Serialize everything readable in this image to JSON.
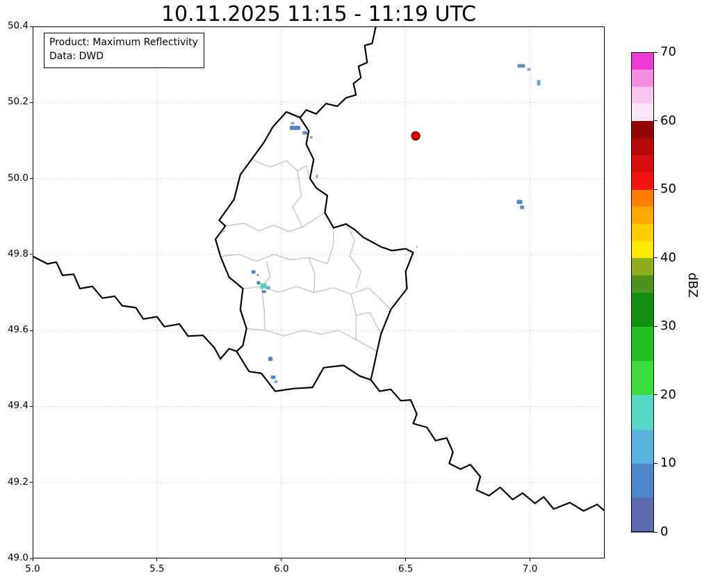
{
  "title": "10.11.2025 11:15 - 11:19 UTC",
  "info_box": {
    "product": "Product: Maximum Reflectivity",
    "source": "Data: DWD"
  },
  "axes": {
    "lon_range": [
      5.0,
      7.3
    ],
    "lat_range": [
      49.0,
      50.4
    ],
    "x_ticks": [
      5.0,
      5.5,
      6.0,
      6.5,
      7.0
    ],
    "x_tick_labels": [
      "5.0",
      "5.5",
      "6.0",
      "6.5",
      "7.0"
    ],
    "y_ticks": [
      49.0,
      49.2,
      49.4,
      49.6,
      49.8,
      50.0,
      50.2,
      50.4
    ],
    "y_tick_labels": [
      "49.0",
      "49.2",
      "49.4",
      "49.6",
      "49.8",
      "50.0",
      "50.2",
      "50.4"
    ],
    "grid": true
  },
  "style": {
    "background": "#ffffff",
    "grid_color": "#b3b3b3",
    "country_border_color": "#000000",
    "canton_border_color": "#bdbdbd"
  },
  "colorbar": {
    "label": "dBZ",
    "range": [
      0,
      70
    ],
    "ticks": [
      0,
      10,
      20,
      30,
      40,
      50,
      60,
      70
    ],
    "tick_labels": [
      "0",
      "10",
      "20",
      "30",
      "40",
      "50",
      "60",
      "70"
    ],
    "segments": [
      {
        "from": 0,
        "to": 5,
        "color": "#5d6bb1"
      },
      {
        "from": 5,
        "to": 10,
        "color": "#4d86c8"
      },
      {
        "from": 10,
        "to": 15,
        "color": "#5ab3de"
      },
      {
        "from": 15,
        "to": 20,
        "color": "#57d6c6"
      },
      {
        "from": 20,
        "to": 25,
        "color": "#3cdc3c"
      },
      {
        "from": 25,
        "to": 30,
        "color": "#1fc01f"
      },
      {
        "from": 30,
        "to": 35,
        "color": "#129012"
      },
      {
        "from": 35,
        "to": 37.5,
        "color": "#4f921a"
      },
      {
        "from": 37.5,
        "to": 40,
        "color": "#8fae1c"
      },
      {
        "from": 40,
        "to": 42.5,
        "color": "#ffe800"
      },
      {
        "from": 42.5,
        "to": 45,
        "color": "#fecf00"
      },
      {
        "from": 45,
        "to": 47.5,
        "color": "#ffa800"
      },
      {
        "from": 47.5,
        "to": 50,
        "color": "#ff7e00"
      },
      {
        "from": 50,
        "to": 52.5,
        "color": "#f21212"
      },
      {
        "from": 52.5,
        "to": 55,
        "color": "#d90f0f"
      },
      {
        "from": 55,
        "to": 57.5,
        "color": "#b80a0a"
      },
      {
        "from": 57.5,
        "to": 60,
        "color": "#930505"
      },
      {
        "from": 60,
        "to": 62.5,
        "color": "#fbe6f6"
      },
      {
        "from": 62.5,
        "to": 65,
        "color": "#f9c6ee"
      },
      {
        "from": 65,
        "to": 67.5,
        "color": "#f48fe0"
      },
      {
        "from": 67.5,
        "to": 70,
        "color": "#ee3ad4"
      }
    ]
  },
  "map": {
    "borders": {
      "luxembourg": [
        [
          6.02,
          50.175
        ],
        [
          6.075,
          50.16
        ],
        [
          6.11,
          50.125
        ],
        [
          6.1,
          50.09
        ],
        [
          6.13,
          50.05
        ],
        [
          6.115,
          50.0
        ],
        [
          6.14,
          49.975
        ],
        [
          6.185,
          49.955
        ],
        [
          6.175,
          49.91
        ],
        [
          6.21,
          49.87
        ],
        [
          6.26,
          49.88
        ],
        [
          6.295,
          49.865
        ],
        [
          6.33,
          49.845
        ],
        [
          6.4,
          49.82
        ],
        [
          6.445,
          49.81
        ],
        [
          6.5,
          49.815
        ],
        [
          6.53,
          49.805
        ],
        [
          6.5,
          49.755
        ],
        [
          6.505,
          49.71
        ],
        [
          6.44,
          49.655
        ],
        [
          6.4,
          49.59
        ],
        [
          6.385,
          49.545
        ],
        [
          6.36,
          49.47
        ],
        [
          6.315,
          49.48
        ],
        [
          6.25,
          49.508
        ],
        [
          6.17,
          49.502
        ],
        [
          6.125,
          49.45
        ],
        [
          6.05,
          49.447
        ],
        [
          5.975,
          49.44
        ],
        [
          5.92,
          49.487
        ],
        [
          5.87,
          49.492
        ],
        [
          5.82,
          49.545
        ],
        [
          5.845,
          49.56
        ],
        [
          5.86,
          49.605
        ],
        [
          5.835,
          49.655
        ],
        [
          5.845,
          49.71
        ],
        [
          5.79,
          49.74
        ],
        [
          5.755,
          49.795
        ],
        [
          5.735,
          49.84
        ],
        [
          5.775,
          49.875
        ],
        [
          5.75,
          49.89
        ],
        [
          5.81,
          49.945
        ],
        [
          5.835,
          50.01
        ],
        [
          5.88,
          50.05
        ],
        [
          5.93,
          50.095
        ],
        [
          5.965,
          50.135
        ]
      ],
      "belgium_germany": [
        [
          6.38,
          50.4
        ],
        [
          6.365,
          50.355
        ],
        [
          6.335,
          50.35
        ],
        [
          6.345,
          50.305
        ],
        [
          6.31,
          50.295
        ],
        [
          6.32,
          50.265
        ],
        [
          6.29,
          50.25
        ],
        [
          6.3,
          50.22
        ],
        [
          6.26,
          50.212
        ],
        [
          6.225,
          50.19
        ],
        [
          6.18,
          50.197
        ],
        [
          6.14,
          50.17
        ],
        [
          6.1,
          50.18
        ],
        [
          6.075,
          50.16
        ],
        [
          6.02,
          50.175
        ]
      ],
      "france_belgium": [
        [
          5.0,
          49.795
        ],
        [
          5.06,
          49.775
        ],
        [
          5.095,
          49.78
        ],
        [
          5.12,
          49.745
        ],
        [
          5.165,
          49.748
        ],
        [
          5.19,
          49.71
        ],
        [
          5.24,
          49.716
        ],
        [
          5.28,
          49.685
        ],
        [
          5.33,
          49.69
        ],
        [
          5.36,
          49.665
        ],
        [
          5.415,
          49.66
        ],
        [
          5.445,
          49.63
        ],
        [
          5.5,
          49.636
        ],
        [
          5.53,
          49.61
        ],
        [
          5.59,
          49.617
        ],
        [
          5.625,
          49.585
        ],
        [
          5.685,
          49.587
        ],
        [
          5.73,
          49.555
        ],
        [
          5.755,
          49.525
        ],
        [
          5.79,
          49.552
        ],
        [
          5.82,
          49.545
        ]
      ],
      "france_germany": [
        [
          6.36,
          49.47
        ],
        [
          6.395,
          49.44
        ],
        [
          6.44,
          49.445
        ],
        [
          6.48,
          49.415
        ],
        [
          6.52,
          49.417
        ],
        [
          6.545,
          49.38
        ],
        [
          6.53,
          49.355
        ],
        [
          6.585,
          49.345
        ],
        [
          6.62,
          49.31
        ],
        [
          6.665,
          49.317
        ],
        [
          6.69,
          49.28
        ],
        [
          6.675,
          49.25
        ],
        [
          6.72,
          49.235
        ],
        [
          6.76,
          49.247
        ],
        [
          6.8,
          49.215
        ],
        [
          6.785,
          49.18
        ],
        [
          6.835,
          49.165
        ],
        [
          6.88,
          49.187
        ],
        [
          6.93,
          49.155
        ],
        [
          6.97,
          49.172
        ],
        [
          7.02,
          49.145
        ],
        [
          7.055,
          49.162
        ],
        [
          7.095,
          49.13
        ],
        [
          7.16,
          49.147
        ],
        [
          7.215,
          49.125
        ],
        [
          7.27,
          49.142
        ],
        [
          7.3,
          49.125
        ]
      ]
    },
    "canton_borders": [
      [
        [
          5.88,
          50.05
        ],
        [
          5.955,
          50.03
        ],
        [
          6.02,
          50.047
        ],
        [
          6.065,
          50.02
        ],
        [
          6.1,
          50.033
        ],
        [
          6.115,
          50.0
        ]
      ],
      [
        [
          5.775,
          49.875
        ],
        [
          5.85,
          49.882
        ],
        [
          5.91,
          49.862
        ],
        [
          5.97,
          49.877
        ],
        [
          6.03,
          49.86
        ],
        [
          6.085,
          49.872
        ],
        [
          6.175,
          49.91
        ]
      ],
      [
        [
          6.065,
          50.02
        ],
        [
          6.08,
          49.955
        ],
        [
          6.045,
          49.925
        ],
        [
          6.085,
          49.872
        ]
      ],
      [
        [
          5.755,
          49.795
        ],
        [
          5.83,
          49.8
        ],
        [
          5.9,
          49.782
        ],
        [
          5.97,
          49.8
        ],
        [
          6.04,
          49.786
        ],
        [
          6.11,
          49.792
        ],
        [
          6.185,
          49.776
        ]
      ],
      [
        [
          6.185,
          49.776
        ],
        [
          6.21,
          49.826
        ],
        [
          6.21,
          49.87
        ]
      ],
      [
        [
          5.845,
          49.71
        ],
        [
          5.92,
          49.716
        ],
        [
          5.99,
          49.7
        ],
        [
          6.06,
          49.716
        ],
        [
          6.13,
          49.7
        ],
        [
          6.21,
          49.712
        ],
        [
          6.28,
          49.696
        ],
        [
          6.35,
          49.712
        ],
        [
          6.44,
          49.655
        ]
      ],
      [
        [
          5.94,
          49.782
        ],
        [
          5.955,
          49.74
        ],
        [
          5.92,
          49.716
        ]
      ],
      [
        [
          6.11,
          49.792
        ],
        [
          6.135,
          49.748
        ],
        [
          6.13,
          49.7
        ]
      ],
      [
        [
          6.26,
          49.88
        ],
        [
          6.295,
          49.838
        ],
        [
          6.275,
          49.796
        ],
        [
          6.32,
          49.755
        ],
        [
          6.3,
          49.712
        ]
      ],
      [
        [
          5.86,
          49.605
        ],
        [
          5.935,
          49.6
        ],
        [
          6.01,
          49.586
        ],
        [
          6.09,
          49.6
        ],
        [
          6.16,
          49.59
        ],
        [
          6.23,
          49.6
        ],
        [
          6.3,
          49.576
        ],
        [
          6.385,
          49.545
        ]
      ],
      [
        [
          6.28,
          49.696
        ],
        [
          6.3,
          49.64
        ],
        [
          6.3,
          49.576
        ]
      ],
      [
        [
          5.92,
          49.716
        ],
        [
          5.93,
          49.66
        ],
        [
          5.935,
          49.6
        ]
      ],
      [
        [
          6.3,
          49.64
        ],
        [
          6.355,
          49.648
        ],
        [
          6.4,
          49.59
        ]
      ]
    ],
    "echoes": [
      {
        "lon": 6.965,
        "lat": 50.296,
        "w": 11,
        "h": 5,
        "color": "#5b8cc4",
        "approx_dbz": 8
      },
      {
        "lon": 6.995,
        "lat": 50.287,
        "w": 5,
        "h": 4,
        "color": "#79aed8",
        "approx_dbz": 6
      },
      {
        "lon": 7.035,
        "lat": 50.252,
        "w": 5,
        "h": 8,
        "color": "#6fa3d2",
        "approx_dbz": 7
      },
      {
        "lon": 6.055,
        "lat": 50.133,
        "w": 15,
        "h": 6,
        "color": "#4f86c3",
        "approx_dbz": 9
      },
      {
        "lon": 6.045,
        "lat": 50.145,
        "w": 5,
        "h": 4,
        "color": "#79aed8",
        "approx_dbz": 6
      },
      {
        "lon": 6.095,
        "lat": 50.12,
        "w": 7,
        "h": 5,
        "color": "#5b8cc4",
        "approx_dbz": 8
      },
      {
        "lon": 6.12,
        "lat": 50.108,
        "w": 4,
        "h": 4,
        "color": "#79aed8",
        "approx_dbz": 6
      },
      {
        "lon": 6.143,
        "lat": 50.005,
        "w": 3,
        "h": 6,
        "color": "#79aed8",
        "approx_dbz": 6
      },
      {
        "lon": 6.958,
        "lat": 49.938,
        "w": 8,
        "h": 6,
        "color": "#4f86c3",
        "approx_dbz": 9
      },
      {
        "lon": 6.968,
        "lat": 49.924,
        "w": 6,
        "h": 5,
        "color": "#5b8cc4",
        "approx_dbz": 8
      },
      {
        "lon": 6.545,
        "lat": 49.82,
        "w": 3,
        "h": 3,
        "color": "#8fc2e2",
        "approx_dbz": 5
      },
      {
        "lon": 5.768,
        "lat": 49.862,
        "w": 4,
        "h": 3,
        "color": "#8fc2e2",
        "approx_dbz": 5
      },
      {
        "lon": 5.888,
        "lat": 49.754,
        "w": 6,
        "h": 5,
        "color": "#4f86c3",
        "approx_dbz": 9
      },
      {
        "lon": 5.905,
        "lat": 49.746,
        "w": 4,
        "h": 3,
        "color": "#79aed8",
        "approx_dbz": 6
      },
      {
        "lon": 5.908,
        "lat": 49.725,
        "w": 5,
        "h": 5,
        "color": "#4f86c3",
        "approx_dbz": 9
      },
      {
        "lon": 5.928,
        "lat": 49.717,
        "w": 9,
        "h": 8,
        "color": "#56d0c8",
        "approx_dbz": 17
      },
      {
        "lon": 5.947,
        "lat": 49.712,
        "w": 5,
        "h": 5,
        "color": "#6fa3d2",
        "approx_dbz": 7
      },
      {
        "lon": 5.93,
        "lat": 49.702,
        "w": 6,
        "h": 4,
        "color": "#4f86c3",
        "approx_dbz": 9
      },
      {
        "lon": 5.956,
        "lat": 49.525,
        "w": 6,
        "h": 6,
        "color": "#4f86c3",
        "approx_dbz": 9
      },
      {
        "lon": 5.967,
        "lat": 49.477,
        "w": 7,
        "h": 5,
        "color": "#4f86c3",
        "approx_dbz": 9
      },
      {
        "lon": 5.978,
        "lat": 49.465,
        "w": 5,
        "h": 4,
        "color": "#79aed8",
        "approx_dbz": 6
      }
    ],
    "marker": {
      "lon": 6.54,
      "lat": 50.112,
      "radius": 6,
      "fill": "#e50000",
      "stroke": "#5a0000"
    }
  },
  "chart_data": {
    "type": "scatter",
    "title": "10.11.2025 11:15 - 11:19 UTC",
    "xlabel": "",
    "ylabel": "",
    "xlim": [
      5.0,
      7.3
    ],
    "ylim": [
      49.0,
      50.4
    ],
    "grid": true,
    "legend_position": "none",
    "colorbar": {
      "label": "dBZ",
      "range": [
        0,
        70
      ],
      "ticks": [
        0,
        10,
        20,
        30,
        40,
        50,
        60,
        70
      ]
    },
    "points": [
      {
        "x": 6.97,
        "y": 50.29,
        "dbz": 8
      },
      {
        "x": 7.03,
        "y": 50.25,
        "dbz": 7
      },
      {
        "x": 6.07,
        "y": 50.13,
        "dbz": 9
      },
      {
        "x": 6.14,
        "y": 50.0,
        "dbz": 6
      },
      {
        "x": 6.96,
        "y": 49.93,
        "dbz": 9
      },
      {
        "x": 6.54,
        "y": 49.82,
        "dbz": 5
      },
      {
        "x": 5.77,
        "y": 49.86,
        "dbz": 5
      },
      {
        "x": 5.89,
        "y": 49.75,
        "dbz": 9
      },
      {
        "x": 5.93,
        "y": 49.72,
        "dbz": 17
      },
      {
        "x": 5.96,
        "y": 49.53,
        "dbz": 9
      },
      {
        "x": 5.97,
        "y": 49.47,
        "dbz": 9
      }
    ],
    "annotations": [
      {
        "x": 6.54,
        "y": 50.11,
        "type": "red-dot-marker"
      }
    ]
  }
}
